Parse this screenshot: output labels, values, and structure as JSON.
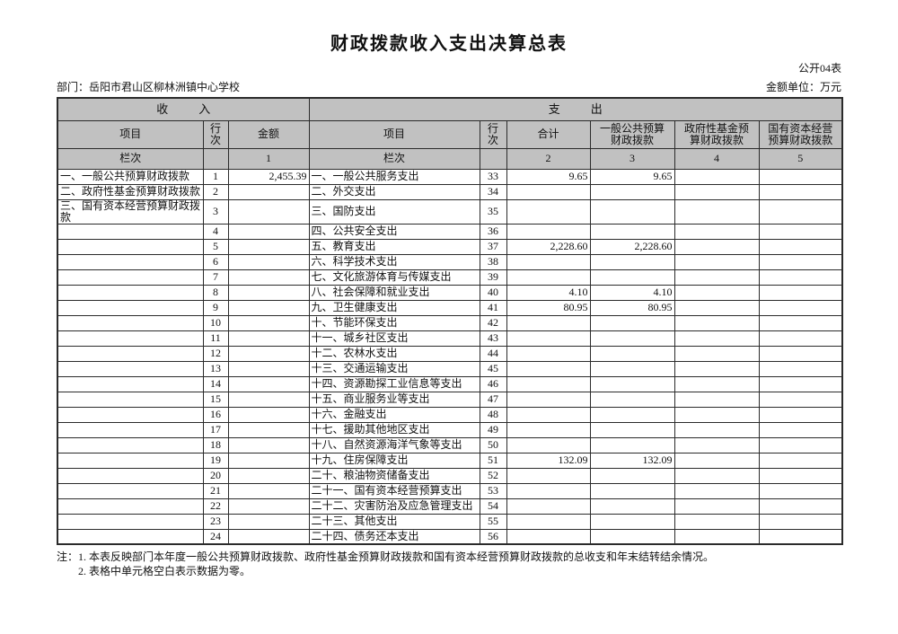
{
  "page": {
    "title": "财政拨款收入支出决算总表",
    "form_code": "公开04表",
    "department": "部门：岳阳市君山区柳林洲镇中心学校",
    "unit": "金额单位：万元",
    "notes": {
      "line1": "注：1. 本表反映部门本年度一般公共预算财政拨款、政府性基金预算财政拨款和国有资本经营预算财政拨款的总收支和年末结转结余情况。",
      "line2": "2. 表格中单元格空白表示数据为零。"
    }
  },
  "colors": {
    "header_bg": "#c1c1c1",
    "border": "#2b2b2b"
  },
  "table": {
    "income_section_title": "收入",
    "expense_section_title": "支出",
    "income_columns": [
      "项目",
      "行次",
      "金额"
    ],
    "expense_columns": [
      "项目",
      "行次",
      "合计",
      "一般公共预算财政拨款",
      "政府性基金预算财政拨款",
      "国有资本经营预算财政拨款"
    ],
    "column_index_row": {
      "income": [
        "栏次",
        "",
        "1"
      ],
      "expense": [
        "栏次",
        "",
        "2",
        "3",
        "4",
        "5"
      ]
    },
    "rows": [
      {
        "income_item": "一、一般公共预算财政拨款",
        "income_line": "1",
        "income_amount": "2,455.39",
        "exp_item": "一、一般公共服务支出",
        "exp_line": "33",
        "total": "9.65",
        "general": "9.65",
        "gov_fund": "",
        "state_capital": ""
      },
      {
        "income_item": "二、政府性基金预算财政拨款",
        "income_line": "2",
        "income_amount": "",
        "exp_item": "二、外交支出",
        "exp_line": "34",
        "total": "",
        "general": "",
        "gov_fund": "",
        "state_capital": ""
      },
      {
        "income_item": "三、国有资本经营预算财政拨款",
        "income_line": "3",
        "income_amount": "",
        "exp_item": "三、国防支出",
        "exp_line": "35",
        "total": "",
        "general": "",
        "gov_fund": "",
        "state_capital": ""
      },
      {
        "income_item": "",
        "income_line": "4",
        "income_amount": "",
        "exp_item": "四、公共安全支出",
        "exp_line": "36",
        "total": "",
        "general": "",
        "gov_fund": "",
        "state_capital": ""
      },
      {
        "income_item": "",
        "income_line": "5",
        "income_amount": "",
        "exp_item": "五、教育支出",
        "exp_line": "37",
        "total": "2,228.60",
        "general": "2,228.60",
        "gov_fund": "",
        "state_capital": ""
      },
      {
        "income_item": "",
        "income_line": "6",
        "income_amount": "",
        "exp_item": "六、科学技术支出",
        "exp_line": "38",
        "total": "",
        "general": "",
        "gov_fund": "",
        "state_capital": ""
      },
      {
        "income_item": "",
        "income_line": "7",
        "income_amount": "",
        "exp_item": "七、文化旅游体育与传媒支出",
        "exp_line": "39",
        "total": "",
        "general": "",
        "gov_fund": "",
        "state_capital": ""
      },
      {
        "income_item": "",
        "income_line": "8",
        "income_amount": "",
        "exp_item": "八、社会保障和就业支出",
        "exp_line": "40",
        "total": "4.10",
        "general": "4.10",
        "gov_fund": "",
        "state_capital": ""
      },
      {
        "income_item": "",
        "income_line": "9",
        "income_amount": "",
        "exp_item": "九、卫生健康支出",
        "exp_line": "41",
        "total": "80.95",
        "general": "80.95",
        "gov_fund": "",
        "state_capital": ""
      },
      {
        "income_item": "",
        "income_line": "10",
        "income_amount": "",
        "exp_item": "十、节能环保支出",
        "exp_line": "42",
        "total": "",
        "general": "",
        "gov_fund": "",
        "state_capital": ""
      },
      {
        "income_item": "",
        "income_line": "11",
        "income_amount": "",
        "exp_item": "十一、城乡社区支出",
        "exp_line": "43",
        "total": "",
        "general": "",
        "gov_fund": "",
        "state_capital": ""
      },
      {
        "income_item": "",
        "income_line": "12",
        "income_amount": "",
        "exp_item": "十二、农林水支出",
        "exp_line": "44",
        "total": "",
        "general": "",
        "gov_fund": "",
        "state_capital": ""
      },
      {
        "income_item": "",
        "income_line": "13",
        "income_amount": "",
        "exp_item": "十三、交通运输支出",
        "exp_line": "45",
        "total": "",
        "general": "",
        "gov_fund": "",
        "state_capital": ""
      },
      {
        "income_item": "",
        "income_line": "14",
        "income_amount": "",
        "exp_item": "十四、资源勘探工业信息等支出",
        "exp_line": "46",
        "total": "",
        "general": "",
        "gov_fund": "",
        "state_capital": ""
      },
      {
        "income_item": "",
        "income_line": "15",
        "income_amount": "",
        "exp_item": "十五、商业服务业等支出",
        "exp_line": "47",
        "total": "",
        "general": "",
        "gov_fund": "",
        "state_capital": ""
      },
      {
        "income_item": "",
        "income_line": "16",
        "income_amount": "",
        "exp_item": "十六、金融支出",
        "exp_line": "48",
        "total": "",
        "general": "",
        "gov_fund": "",
        "state_capital": ""
      },
      {
        "income_item": "",
        "income_line": "17",
        "income_amount": "",
        "exp_item": "十七、援助其他地区支出",
        "exp_line": "49",
        "total": "",
        "general": "",
        "gov_fund": "",
        "state_capital": ""
      },
      {
        "income_item": "",
        "income_line": "18",
        "income_amount": "",
        "exp_item": "十八、自然资源海洋气象等支出",
        "exp_line": "50",
        "total": "",
        "general": "",
        "gov_fund": "",
        "state_capital": ""
      },
      {
        "income_item": "",
        "income_line": "19",
        "income_amount": "",
        "exp_item": "十九、住房保障支出",
        "exp_line": "51",
        "total": "132.09",
        "general": "132.09",
        "gov_fund": "",
        "state_capital": ""
      },
      {
        "income_item": "",
        "income_line": "20",
        "income_amount": "",
        "exp_item": "二十、粮油物资储备支出",
        "exp_line": "52",
        "total": "",
        "general": "",
        "gov_fund": "",
        "state_capital": ""
      },
      {
        "income_item": "",
        "income_line": "21",
        "income_amount": "",
        "exp_item": "二十一、国有资本经营预算支出",
        "exp_line": "53",
        "total": "",
        "general": "",
        "gov_fund": "",
        "state_capital": ""
      },
      {
        "income_item": "",
        "income_line": "22",
        "income_amount": "",
        "exp_item": "二十二、灾害防治及应急管理支出",
        "exp_line": "54",
        "total": "",
        "general": "",
        "gov_fund": "",
        "state_capital": ""
      },
      {
        "income_item": "",
        "income_line": "23",
        "income_amount": "",
        "exp_item": "二十三、其他支出",
        "exp_line": "55",
        "total": "",
        "general": "",
        "gov_fund": "",
        "state_capital": ""
      },
      {
        "income_item": "",
        "income_line": "24",
        "income_amount": "",
        "exp_item": "二十四、债务还本支出",
        "exp_line": "56",
        "total": "",
        "general": "",
        "gov_fund": "",
        "state_capital": ""
      }
    ]
  }
}
